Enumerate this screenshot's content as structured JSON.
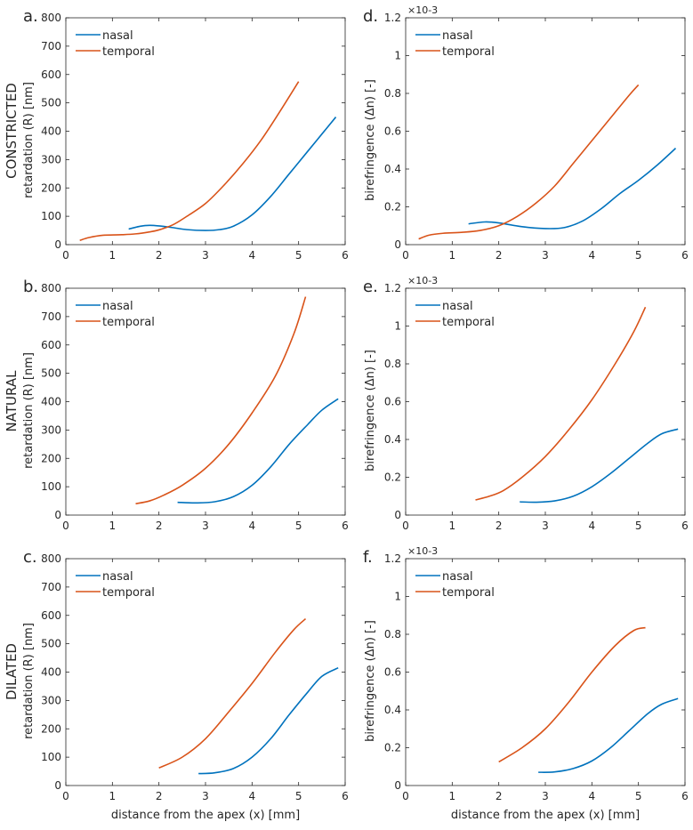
{
  "colors": {
    "nasal": "#0072BD",
    "temporal": "#D95319",
    "axis": "#262626"
  },
  "row_labels": [
    "CONSTRICTED",
    "NATURAL",
    "DILATED"
  ],
  "x_axis_label": "distance from the apex (x) [mm]",
  "chart_data": [
    {
      "id": "a",
      "panel_label": "a.",
      "type": "line",
      "row": 0,
      "col": 0,
      "ylabel": "retardation (R) [nm]",
      "xlabel": "",
      "xlim": [
        0,
        6
      ],
      "ylim": [
        0,
        800
      ],
      "xticks": [
        0,
        1,
        2,
        3,
        4,
        5,
        6
      ],
      "yticks": [
        0,
        100,
        200,
        300,
        400,
        500,
        600,
        700,
        800
      ],
      "y_multiplier": "",
      "legend": "top-left",
      "grid": false,
      "series": [
        {
          "name": "nasal",
          "x": [
            1.35,
            1.6,
            1.8,
            2.0,
            2.3,
            2.6,
            3.0,
            3.3,
            3.6,
            4.0,
            4.4,
            4.8,
            5.2,
            5.5,
            5.8
          ],
          "y": [
            55,
            65,
            68,
            66,
            60,
            53,
            50,
            53,
            65,
            105,
            170,
            250,
            330,
            390,
            450
          ]
        },
        {
          "name": "temporal",
          "x": [
            0.3,
            0.5,
            0.8,
            1.2,
            1.5,
            1.8,
            2.0,
            2.3,
            2.6,
            3.0,
            3.4,
            3.8,
            4.2,
            4.6,
            5.0
          ],
          "y": [
            15,
            25,
            33,
            35,
            38,
            45,
            52,
            70,
            100,
            145,
            210,
            285,
            370,
            470,
            575
          ]
        }
      ]
    },
    {
      "id": "b",
      "panel_label": "b.",
      "type": "line",
      "row": 1,
      "col": 0,
      "ylabel": "retardation (R) [nm]",
      "xlabel": "",
      "xlim": [
        0,
        6
      ],
      "ylim": [
        0,
        800
      ],
      "xticks": [
        0,
        1,
        2,
        3,
        4,
        5,
        6
      ],
      "yticks": [
        0,
        100,
        200,
        300,
        400,
        500,
        600,
        700,
        800
      ],
      "y_multiplier": "",
      "legend": "top-left",
      "grid": false,
      "series": [
        {
          "name": "nasal",
          "x": [
            2.4,
            2.8,
            3.2,
            3.6,
            4.0,
            4.4,
            4.8,
            5.2,
            5.5,
            5.85
          ],
          "y": [
            45,
            43,
            47,
            65,
            105,
            170,
            250,
            320,
            370,
            410
          ]
        },
        {
          "name": "temporal",
          "x": [
            1.5,
            1.8,
            2.1,
            2.5,
            3.0,
            3.5,
            4.0,
            4.5,
            4.9,
            5.15
          ],
          "y": [
            40,
            50,
            70,
            105,
            165,
            250,
            360,
            490,
            640,
            770
          ]
        }
      ]
    },
    {
      "id": "c",
      "panel_label": "c.",
      "type": "line",
      "row": 2,
      "col": 0,
      "ylabel": "retardation (R) [nm]",
      "xlabel": "distance from the apex (x) [mm]",
      "xlim": [
        0,
        6
      ],
      "ylim": [
        0,
        800
      ],
      "xticks": [
        0,
        1,
        2,
        3,
        4,
        5,
        6
      ],
      "yticks": [
        0,
        100,
        200,
        300,
        400,
        500,
        600,
        700,
        800
      ],
      "y_multiplier": "",
      "legend": "top-left",
      "grid": false,
      "series": [
        {
          "name": "nasal",
          "x": [
            2.85,
            3.2,
            3.6,
            4.0,
            4.4,
            4.8,
            5.2,
            5.5,
            5.85
          ],
          "y": [
            42,
            45,
            60,
            100,
            165,
            250,
            330,
            385,
            415
          ]
        },
        {
          "name": "temporal",
          "x": [
            2.0,
            2.5,
            3.0,
            3.5,
            4.0,
            4.5,
            4.9,
            5.15
          ],
          "y": [
            62,
            100,
            165,
            260,
            360,
            470,
            550,
            588
          ]
        }
      ]
    },
    {
      "id": "d",
      "panel_label": "d.",
      "type": "line",
      "row": 0,
      "col": 1,
      "ylabel": "birefringence (Δn) [-]",
      "xlabel": "",
      "xlim": [
        0,
        6
      ],
      "ylim": [
        0,
        1.2
      ],
      "xticks": [
        0,
        1,
        2,
        3,
        4,
        5,
        6
      ],
      "yticks": [
        0,
        0.2,
        0.4,
        0.6,
        0.8,
        1,
        1.2
      ],
      "y_multiplier": "×10-3",
      "legend": "top-left",
      "grid": false,
      "series": [
        {
          "name": "nasal",
          "x": [
            1.35,
            1.7,
            2.0,
            2.5,
            3.0,
            3.4,
            3.8,
            4.2,
            4.6,
            5.0,
            5.4,
            5.8
          ],
          "y": [
            0.11,
            0.12,
            0.115,
            0.095,
            0.085,
            0.09,
            0.125,
            0.19,
            0.27,
            0.34,
            0.42,
            0.51
          ]
        },
        {
          "name": "temporal",
          "x": [
            0.28,
            0.5,
            0.8,
            1.2,
            1.6,
            2.0,
            2.4,
            2.8,
            3.2,
            3.6,
            4.0,
            4.4,
            4.8,
            5.0
          ],
          "y": [
            0.03,
            0.05,
            0.06,
            0.065,
            0.075,
            0.1,
            0.15,
            0.22,
            0.31,
            0.43,
            0.55,
            0.67,
            0.79,
            0.845
          ]
        }
      ]
    },
    {
      "id": "e",
      "panel_label": "e.",
      "type": "line",
      "row": 1,
      "col": 1,
      "ylabel": "birefringence (Δn) [-]",
      "xlabel": "",
      "xlim": [
        0,
        6
      ],
      "ylim": [
        0,
        1.2
      ],
      "xticks": [
        0,
        1,
        2,
        3,
        4,
        5,
        6
      ],
      "yticks": [
        0,
        0.2,
        0.4,
        0.6,
        0.8,
        1,
        1.2
      ],
      "y_multiplier": "×10-3",
      "legend": "top-left",
      "grid": false,
      "series": [
        {
          "name": "nasal",
          "x": [
            2.45,
            2.8,
            3.2,
            3.6,
            4.0,
            4.4,
            4.8,
            5.2,
            5.5,
            5.85
          ],
          "y": [
            0.07,
            0.068,
            0.075,
            0.1,
            0.15,
            0.22,
            0.3,
            0.38,
            0.43,
            0.455
          ]
        },
        {
          "name": "temporal",
          "x": [
            1.5,
            1.8,
            2.1,
            2.5,
            3.0,
            3.5,
            4.0,
            4.5,
            4.9,
            5.15
          ],
          "y": [
            0.08,
            0.1,
            0.13,
            0.2,
            0.31,
            0.45,
            0.61,
            0.8,
            0.97,
            1.1
          ]
        }
      ]
    },
    {
      "id": "f",
      "panel_label": "f.",
      "type": "line",
      "row": 2,
      "col": 1,
      "ylabel": "birefringence (Δn) [-]",
      "xlabel": "distance from the apex (x) [mm]",
      "xlim": [
        0,
        6
      ],
      "ylim": [
        0,
        1.2
      ],
      "xticks": [
        0,
        1,
        2,
        3,
        4,
        5,
        6
      ],
      "yticks": [
        0,
        0.2,
        0.4,
        0.6,
        0.8,
        1,
        1.2
      ],
      "y_multiplier": "×10-3",
      "legend": "top-left",
      "grid": false,
      "series": [
        {
          "name": "nasal",
          "x": [
            2.85,
            3.2,
            3.6,
            4.0,
            4.4,
            4.8,
            5.2,
            5.5,
            5.85
          ],
          "y": [
            0.07,
            0.072,
            0.09,
            0.13,
            0.2,
            0.29,
            0.38,
            0.43,
            0.46
          ]
        },
        {
          "name": "temporal",
          "x": [
            2.0,
            2.5,
            3.0,
            3.5,
            4.0,
            4.5,
            4.9,
            5.15
          ],
          "y": [
            0.125,
            0.2,
            0.3,
            0.44,
            0.6,
            0.74,
            0.82,
            0.835
          ]
        }
      ]
    }
  ]
}
